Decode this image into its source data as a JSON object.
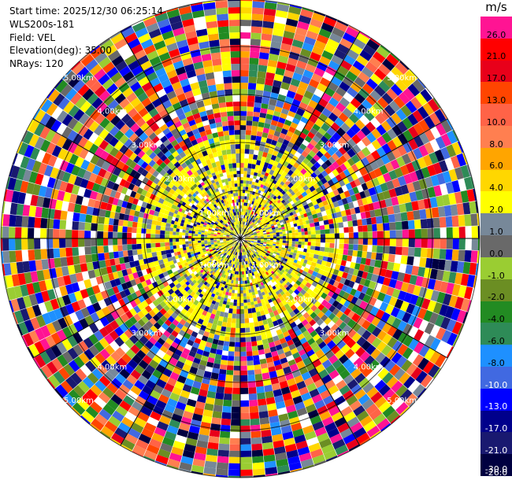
{
  "info": {
    "start_time": "Start time: 2025/12/30 06:25:14",
    "site": "WLS200s-181",
    "field": "Field: VEL",
    "elevation": "Elevation(deg): 35.00",
    "nrays": "NRays: 120"
  },
  "colorbar": {
    "unit": "m/s",
    "labels": [
      "26.0",
      "21.0",
      "17.0",
      "13.0",
      "10.0",
      "8.0",
      "6.0",
      "4.0",
      "2.0",
      "1.0",
      "0.0",
      "-1.0",
      "-2.0",
      "-4.0",
      "-6.0",
      "-8.0",
      "-10.0",
      "-13.0",
      "-17.0",
      "-21.0",
      "-26.0",
      "-30.0"
    ],
    "colors": [
      "#ff1493",
      "#ff0000",
      "#e8001a",
      "#ff4500",
      "#ff6347",
      "#ff7f50",
      "#ffa500",
      "#ffd700",
      "#ffff00",
      "#778899",
      "#696969",
      "#9acd32",
      "#6b8e23",
      "#228b22",
      "#2e8b57",
      "#1e90ff",
      "#4169e1",
      "#0000ff",
      "#00008b",
      "#191970",
      "#000040"
    ]
  },
  "range_rings": {
    "labels": [
      "1.00km",
      "2.00km",
      "3.00km",
      "4.00km",
      "5.00km"
    ]
  },
  "nrays": 120
}
